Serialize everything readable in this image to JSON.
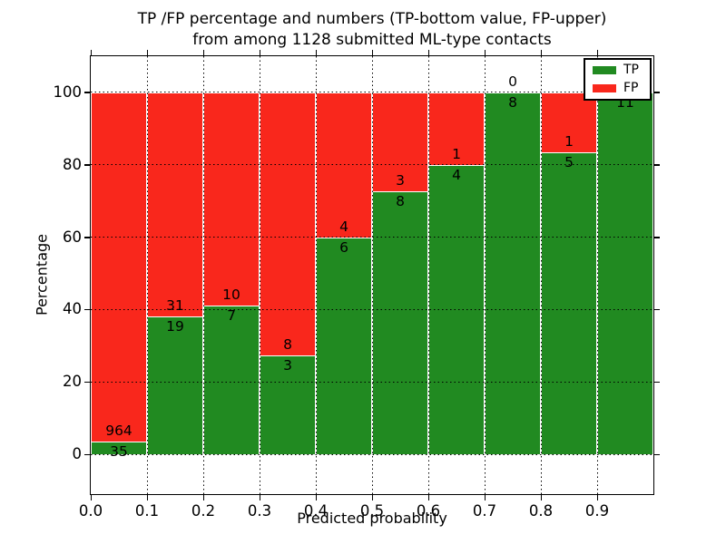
{
  "chart_data": {
    "type": "bar",
    "stacked": true,
    "title_line1": "TP /FP percentage and numbers (TP-bottom value, FP-upper)",
    "title_line2": "from among 1128 submitted ML-type contacts",
    "xlabel": "Predicted probability",
    "ylabel": "Percentage",
    "total_contacts": 1128,
    "xlim": [
      0.0,
      1.0
    ],
    "ylim": [
      -11,
      110
    ],
    "bin_width": 0.1,
    "grid": "dotted",
    "x_ticks": [
      "0.0",
      "0.1",
      "0.2",
      "0.3",
      "0.4",
      "0.5",
      "0.6",
      "0.7",
      "0.8",
      "0.9"
    ],
    "y_ticks": [
      "0",
      "20",
      "40",
      "60",
      "80",
      "100"
    ],
    "y_tick_values": [
      0,
      20,
      40,
      60,
      80,
      100
    ],
    "colors": {
      "tp": "#218a21",
      "fp": "#f9271c",
      "bar_edge": "#ffffff",
      "grid": "#000000"
    },
    "legend": {
      "position": "upper right",
      "entries": [
        {
          "label": "TP",
          "color": "#218a21"
        },
        {
          "label": "FP",
          "color": "#f9271c"
        }
      ]
    },
    "bins": [
      {
        "range": "0.0-0.1",
        "tp": 35,
        "fp": 964,
        "tp_pct": 3.5,
        "tp_label": "35",
        "fp_label": "964"
      },
      {
        "range": "0.1-0.2",
        "tp": 19,
        "fp": 31,
        "tp_pct": 38.0,
        "tp_label": "19",
        "fp_label": "31"
      },
      {
        "range": "0.2-0.3",
        "tp": 7,
        "fp": 10,
        "tp_pct": 41.18,
        "tp_label": "7",
        "fp_label": "10"
      },
      {
        "range": "0.3-0.4",
        "tp": 3,
        "fp": 8,
        "tp_pct": 27.27,
        "tp_label": "3",
        "fp_label": "8"
      },
      {
        "range": "0.4-0.5",
        "tp": 6,
        "fp": 4,
        "tp_pct": 60.0,
        "tp_label": "6",
        "fp_label": "4"
      },
      {
        "range": "0.5-0.6",
        "tp": 8,
        "fp": 3,
        "tp_pct": 72.73,
        "tp_label": "8",
        "fp_label": "3"
      },
      {
        "range": "0.6-0.7",
        "tp": 4,
        "fp": 1,
        "tp_pct": 80.0,
        "tp_label": "4",
        "fp_label": "1"
      },
      {
        "range": "0.7-0.8",
        "tp": 8,
        "fp": 0,
        "tp_pct": 100.0,
        "tp_label": "8",
        "fp_label": "0"
      },
      {
        "range": "0.8-0.9",
        "tp": 5,
        "fp": 1,
        "tp_pct": 83.33,
        "tp_label": "5",
        "fp_label": "1"
      },
      {
        "range": "0.9-1.0",
        "tp": 11,
        "fp": 0,
        "tp_pct": 100.0,
        "tp_label": "11",
        "fp_label": "0"
      }
    ]
  }
}
